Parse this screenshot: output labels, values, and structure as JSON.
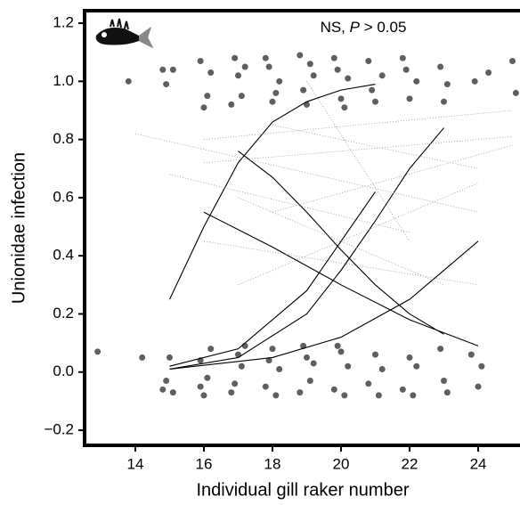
{
  "chart_data": {
    "type": "scatter",
    "x_label": "Individual gill raker number",
    "y_label": "Unionidae infection",
    "annotation_parts": [
      "NS, ",
      "P",
      " > 0.05"
    ],
    "xlim": [
      12.52,
      25.22
    ],
    "ylim": [
      -0.252,
      1.243
    ],
    "xticks": [
      14,
      16,
      18,
      20,
      22,
      24
    ],
    "yticks": [
      {
        "value": -0.2,
        "label": "−0.2"
      },
      {
        "value": 0,
        "label": "0.0"
      },
      0.2,
      0.4,
      0.6,
      0.8,
      {
        "value": 1,
        "label": "1.0"
      },
      1.2
    ],
    "point_color": "#5f5f5f",
    "points": {
      "x": [
        12.9,
        13.8,
        14.2,
        14.8,
        14.9,
        15.1,
        14.9,
        15.0,
        15.1,
        14.8,
        15.9,
        16.1,
        16.0,
        16.2,
        15.9,
        16.1,
        16.2,
        15.9,
        16.0,
        16.9,
        17.1,
        17.0,
        16.8,
        17.2,
        17.0,
        16.9,
        17.1,
        17.2,
        16.8,
        17.8,
        18.0,
        18.2,
        17.9,
        18.1,
        18.0,
        17.8,
        18.2,
        18.1,
        17.9,
        18.8,
        19.0,
        19.2,
        18.9,
        19.1,
        19.0,
        18.8,
        19.2,
        18.9,
        19.1,
        19.8,
        20.0,
        20.2,
        19.9,
        20.1,
        20.0,
        19.8,
        20.2,
        19.9,
        20.1,
        20.8,
        21.0,
        21.2,
        20.9,
        21.0,
        20.8,
        21.2,
        21.1,
        21.8,
        22.0,
        22.2,
        21.9,
        22.0,
        21.8,
        22.2,
        22.1,
        22.9,
        23.0,
        23.1,
        22.9,
        23.0,
        23.1,
        23.8,
        24.0,
        24.1,
        23.9,
        24.3,
        25.0,
        25.1
      ],
      "y": [
        0.07,
        1.0,
        0.05,
        1.04,
        0.99,
        1.04,
        -0.03,
        0.05,
        -0.07,
        -0.06,
        1.07,
        0.95,
        0.91,
        1.03,
        0.04,
        -0.02,
        0.08,
        -0.05,
        -0.08,
        1.08,
        0.95,
        1.02,
        0.92,
        1.05,
        0.06,
        -0.04,
        0.02,
        0.09,
        -0.07,
        1.08,
        0.93,
        1.0,
        1.05,
        0.96,
        0.08,
        -0.05,
        0.01,
        -0.08,
        0.04,
        1.09,
        0.92,
        1.02,
        0.97,
        1.06,
        0.05,
        -0.07,
        0.03,
        0.09,
        -0.03,
        1.08,
        0.94,
        1.01,
        1.04,
        0.91,
        0.07,
        -0.06,
        0.02,
        0.09,
        -0.08,
        1.07,
        0.93,
        1.02,
        0.97,
        0.06,
        -0.04,
        0.01,
        -0.08,
        1.08,
        0.94,
        1.0,
        1.04,
        0.05,
        -0.06,
        0.02,
        -0.08,
        1.05,
        0.93,
        0.99,
        0.08,
        -0.03,
        -0.07,
        0.06,
        -0.05,
        0.02,
        1.0,
        1.03,
        1.07,
        0.96
      ]
    },
    "curves": [
      {
        "style": "solid",
        "x": [
          15,
          16,
          17,
          18,
          19,
          20,
          21
        ],
        "y": [
          0.25,
          0.5,
          0.72,
          0.86,
          0.93,
          0.97,
          0.99
        ]
      },
      {
        "style": "solid",
        "x": [
          16,
          18,
          20,
          22,
          24
        ],
        "y": [
          0.55,
          0.43,
          0.3,
          0.18,
          0.09
        ]
      },
      {
        "style": "solid",
        "x": [
          17,
          18,
          19,
          20,
          21,
          22,
          23
        ],
        "y": [
          0.76,
          0.67,
          0.55,
          0.42,
          0.3,
          0.2,
          0.13
        ]
      },
      {
        "style": "solid",
        "x": [
          15,
          17,
          19,
          20,
          21,
          22,
          23
        ],
        "y": [
          0.01,
          0.05,
          0.2,
          0.35,
          0.52,
          0.7,
          0.84
        ]
      },
      {
        "style": "solid",
        "x": [
          15,
          17,
          19,
          20,
          21
        ],
        "y": [
          0.02,
          0.08,
          0.28,
          0.45,
          0.62
        ]
      },
      {
        "style": "solid",
        "x": [
          15,
          18,
          20,
          22,
          24
        ],
        "y": [
          0.01,
          0.05,
          0.12,
          0.25,
          0.45
        ]
      },
      {
        "style": "dotted",
        "x": [
          14,
          24
        ],
        "y": [
          0.82,
          0.55
        ]
      },
      {
        "style": "dotted",
        "x": [
          16,
          25
        ],
        "y": [
          0.8,
          0.9
        ]
      },
      {
        "style": "dotted",
        "x": [
          15,
          22
        ],
        "y": [
          0.68,
          0.48
        ]
      },
      {
        "style": "dotted",
        "x": [
          16,
          24
        ],
        "y": [
          0.45,
          0.3
        ]
      },
      {
        "style": "dotted",
        "x": [
          17,
          23
        ],
        "y": [
          0.6,
          0.3
        ]
      },
      {
        "style": "dotted",
        "x": [
          18,
          24
        ],
        "y": [
          0.85,
          0.7
        ]
      },
      {
        "style": "dotted",
        "x": [
          17,
          24
        ],
        "y": [
          0.3,
          0.65
        ]
      },
      {
        "style": "dotted",
        "x": [
          19,
          22
        ],
        "y": [
          1.0,
          0.45
        ]
      },
      {
        "style": "dotted",
        "x": [
          18,
          25
        ],
        "y": [
          0.55,
          0.78
        ]
      },
      {
        "style": "dotted",
        "x": [
          16,
          25
        ],
        "y": [
          0.72,
          0.81
        ]
      }
    ],
    "curve_color": "#000000"
  }
}
